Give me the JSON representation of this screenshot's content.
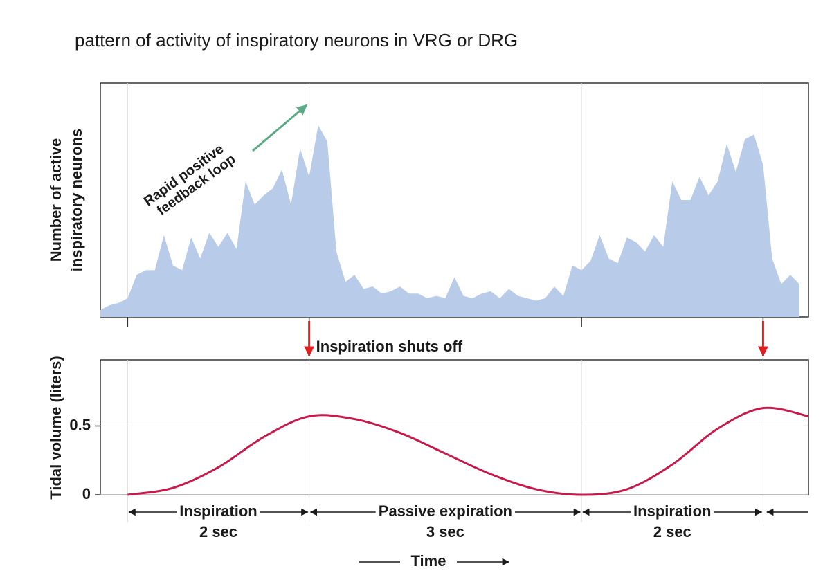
{
  "title": "pattern of activity of inspiratory neurons in VRG or DRG",
  "chart_data": [
    {
      "type": "area",
      "ylabel": [
        "Number of active",
        "inspiratory neurons"
      ],
      "annotation": [
        "Rapid positive",
        "feedback loop"
      ],
      "color": "#b8cbe8",
      "xlim": [
        -0.3,
        7.5
      ],
      "ylim": [
        0,
        100
      ],
      "vlines": [
        0,
        2,
        5,
        7
      ],
      "x": [
        -0.3,
        -0.2,
        -0.1,
        0,
        0.1,
        0.2,
        0.3,
        0.4,
        0.5,
        0.6,
        0.7,
        0.8,
        0.9,
        1,
        1.1,
        1.2,
        1.3,
        1.4,
        1.5,
        1.6,
        1.7,
        1.8,
        1.9,
        2,
        2.1,
        2.2,
        2.3,
        2.4,
        2.5,
        2.6,
        2.7,
        2.8,
        2.9,
        3,
        3.1,
        3.2,
        3.3,
        3.4,
        3.5,
        3.6,
        3.7,
        3.8,
        3.9,
        4,
        4.1,
        4.2,
        4.3,
        4.4,
        4.5,
        4.6,
        4.7,
        4.8,
        4.9,
        5,
        5.1,
        5.2,
        5.3,
        5.4,
        5.5,
        5.6,
        5.7,
        5.8,
        5.9,
        6,
        6.1,
        6.2,
        6.3,
        6.4,
        6.5,
        6.6,
        6.7,
        6.8,
        6.9,
        7,
        7.1,
        7.2,
        7.3,
        7.4
      ],
      "values": [
        3,
        5,
        6,
        8,
        18,
        20,
        20,
        35,
        22,
        20,
        34,
        25,
        36,
        30,
        36,
        29,
        58,
        48,
        52,
        55,
        63,
        48,
        72,
        60,
        82,
        75,
        28,
        15,
        18,
        12,
        13,
        10,
        11,
        13,
        10,
        10,
        8,
        9,
        8,
        17,
        9,
        8,
        10,
        11,
        8,
        12,
        9,
        8,
        7,
        8,
        13,
        9,
        22,
        20,
        24,
        35,
        25,
        23,
        34,
        32,
        28,
        35,
        30,
        58,
        50,
        50,
        60,
        52,
        58,
        74,
        62,
        76,
        78,
        65,
        25,
        14,
        18,
        14
      ]
    },
    {
      "type": "line",
      "ylabel": "Tidal volume (liters)",
      "color": "#c8194b",
      "xlim": [
        -0.3,
        7.5
      ],
      "ylim": [
        0,
        0.98
      ],
      "yticks": [
        0,
        0.5
      ],
      "vlines": [
        0,
        2,
        5,
        7
      ],
      "annotation": "Inspiration shuts off",
      "shutoff": [
        2,
        7
      ],
      "x": [
        0,
        0.5,
        1,
        1.5,
        2,
        2.5,
        3,
        3.5,
        4,
        4.5,
        5,
        5.5,
        6,
        6.5,
        7,
        7.5
      ],
      "values": [
        0,
        0.05,
        0.2,
        0.42,
        0.57,
        0.55,
        0.45,
        0.3,
        0.15,
        0.04,
        0,
        0.04,
        0.22,
        0.48,
        0.63,
        0.57
      ],
      "phases": [
        {
          "label": "Inspiration",
          "duration": "2 sec",
          "start": 0,
          "end": 2
        },
        {
          "label": "Passive expiration",
          "duration": "3 sec",
          "start": 2,
          "end": 5
        },
        {
          "label": "Inspiration",
          "duration": "2 sec",
          "start": 5,
          "end": 7
        }
      ],
      "xlabel": "Time"
    }
  ]
}
